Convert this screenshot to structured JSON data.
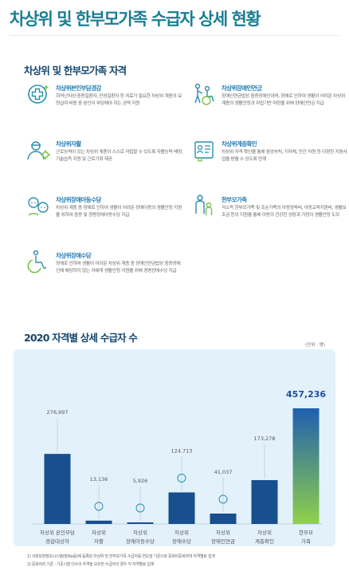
{
  "page": {
    "title": "차상위 및 한부모가족 수급자 상세 현황"
  },
  "qualification_section": {
    "title": "차상위 및 한부모가족 자격",
    "items": [
      {
        "icon": "medical-cross-icon",
        "name": "차상위본인부담경감",
        "desc": "희귀난치성·중증질환자, 만성질환자 등 치료가 필요한 차상위 계층의 요양급여 비용 중 본인이 부담해야 하는 금액 지원"
      },
      {
        "icon": "assisted-walking-icon",
        "name": "차상위장애인연금",
        "desc": "장애인연금법상 중증장애인이며, 장애로 인하여 생활이 어려운 차상위 계층의 생활안정과 자립기반 마련을 위해 장애인연금 지급"
      },
      {
        "icon": "worker-gear-icon",
        "name": "차상위자활",
        "desc": "근로능력이 있는 차상위 계층이 스스로 자립할 수 있도록 자활능력 배양, 기술습득 지원 및 근로기회 제공"
      },
      {
        "icon": "certificate-icon",
        "name": "차상위계층확인",
        "desc": "차상위 자격 확인을 통해 중앙부처, 지자체, 민간 자원 등 다양한 지원사업을 받을 수 있도록 연계"
      },
      {
        "icon": "children-icon",
        "name": "차상위장애아동수당",
        "desc": "차상위 계층 중 장애로 인하여 생활이 어려운 장애아동의 생활안정 지원을 위하여 중증 및 경증장애아동수당 지급"
      },
      {
        "icon": "family-icon",
        "name": "한부모가족",
        "desc": "저소득 한부모가족 및 조손가족의 아동양육비, 아동교육지원비, 생활보조금 등의 지원을 통해 아동의 건강한 성장과 가정의 생활안정 도모"
      },
      {
        "icon": "wheelchair-icon",
        "name": "차상위장애수당",
        "desc": "장애로 인하여 생활이 어려운 차상위 계층 중 장애인연금법상 중증장애인에 해당하지 않는 자에게 생활안정 지원을 위해 경증장애수당 지급"
      }
    ]
  },
  "chart_section": {
    "title": "2020 자격별 상세 수급자 수",
    "unit": "(단위 : 명)"
  },
  "chart_data": {
    "type": "bar",
    "title": "2020 자격별 상세 수급자 수",
    "unit": "(단위 : 명)",
    "categories": [
      [
        "차상위 본인부담",
        "경감대상자"
      ],
      [
        "차상위",
        "자활"
      ],
      [
        "차상위",
        "장애아동수당"
      ],
      [
        "차상위",
        "장애수당"
      ],
      [
        "차상위",
        "장애인연금"
      ],
      [
        "차상위",
        "계층확인"
      ],
      [
        "한부모",
        "가족"
      ]
    ],
    "values": [
      276997,
      13136,
      5926,
      124713,
      41037,
      173278,
      457236
    ],
    "value_labels": [
      "276,997",
      "13,136",
      "5,926",
      "124,713",
      "41,037",
      "173,278",
      "457,236"
    ],
    "highlight_index": 6,
    "ylim": [
      0,
      457236
    ],
    "colors": {
      "bar": "#174f8f",
      "highlight_top": "#1f5fb0",
      "highlight_bottom": "#8fd14a",
      "panel": "#e3f1fb",
      "label": "#555555",
      "highlight_label": "#1f4f9a"
    }
  },
  "footnotes": [
    "1) 사회보장정보시스템(행복e음)에 등록된 차상위 및 한부모가족 수급자를 연도말 기준으로 중복미중복하여 자격별로 집계",
    "2) 중복처리 기준 : 기준시점 다수의 자격을 보유한 수급자의 경우 각 자격별로 집계"
  ]
}
